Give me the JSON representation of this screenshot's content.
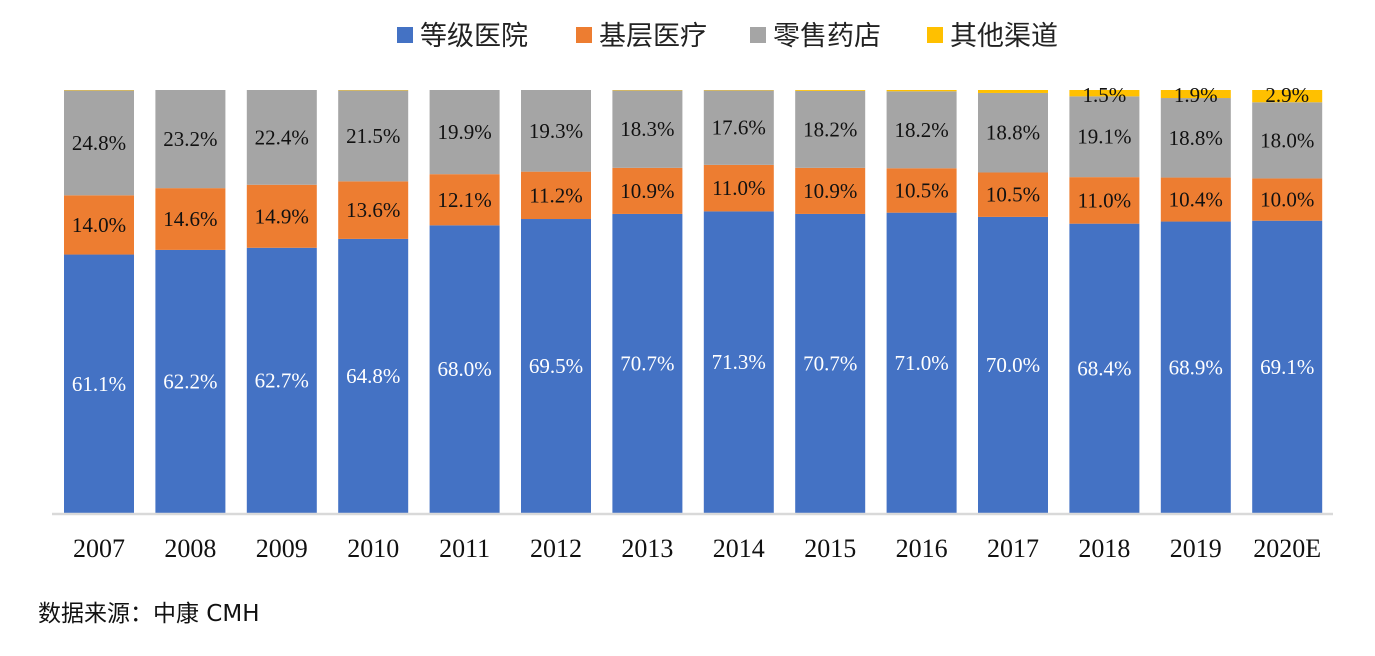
{
  "chart_data": {
    "type": "bar",
    "stacked": true,
    "normalized": true,
    "title": "",
    "xlabel": "",
    "ylabel": "",
    "ylim": [
      0,
      100
    ],
    "grid": false,
    "legend_position": "top",
    "categories": [
      "2007",
      "2008",
      "2009",
      "2010",
      "2011",
      "2012",
      "2013",
      "2014",
      "2015",
      "2016",
      "2017",
      "2018",
      "2019",
      "2020E"
    ],
    "series": [
      {
        "name": "等级医院",
        "color": "#4472C4",
        "label_color": "#ffffff",
        "values": [
          61.1,
          62.2,
          62.7,
          64.8,
          68.0,
          69.5,
          70.7,
          71.3,
          70.7,
          71.0,
          70.0,
          68.4,
          68.9,
          69.1
        ],
        "labels": [
          "61.1%",
          "62.2%",
          "62.7%",
          "64.8%",
          "68.0%",
          "69.5%",
          "70.7%",
          "71.3%",
          "70.7%",
          "71.0%",
          "70.0%",
          "68.4%",
          "68.9%",
          "69.1%"
        ]
      },
      {
        "name": "基层医疗",
        "color": "#ED7D31",
        "label_color": "#111111",
        "values": [
          14.0,
          14.6,
          14.9,
          13.6,
          12.1,
          11.2,
          10.9,
          11.0,
          10.9,
          10.5,
          10.5,
          11.0,
          10.4,
          10.0
        ],
        "labels": [
          "14.0%",
          "14.6%",
          "14.9%",
          "13.6%",
          "12.1%",
          "11.2%",
          "10.9%",
          "11.0%",
          "10.9%",
          "10.5%",
          "10.5%",
          "11.0%",
          "10.4%",
          "10.0%"
        ]
      },
      {
        "name": "零售药店",
        "color": "#A5A5A5",
        "label_color": "#111111",
        "values": [
          24.8,
          23.2,
          22.4,
          21.5,
          19.9,
          19.3,
          18.3,
          17.6,
          18.2,
          18.2,
          18.8,
          19.1,
          18.8,
          18.0
        ],
        "labels": [
          "24.8%",
          "23.2%",
          "22.4%",
          "21.5%",
          "19.9%",
          "19.3%",
          "18.3%",
          "17.6%",
          "18.2%",
          "18.2%",
          "18.8%",
          "19.1%",
          "18.8%",
          "18.0%"
        ]
      },
      {
        "name": "其他渠道",
        "color": "#FFC000",
        "label_color": "#111111",
        "values": [
          0.1,
          0.0,
          0.0,
          0.1,
          0.0,
          0.0,
          0.1,
          0.1,
          0.2,
          0.3,
          0.7,
          1.5,
          1.9,
          2.9
        ],
        "labels": [
          "",
          "",
          "",
          "",
          "",
          "",
          "",
          "",
          "",
          "",
          "",
          "1.5%",
          "1.9%",
          "2.9%"
        ]
      }
    ]
  },
  "source_note": "数据来源：中康 CMH"
}
